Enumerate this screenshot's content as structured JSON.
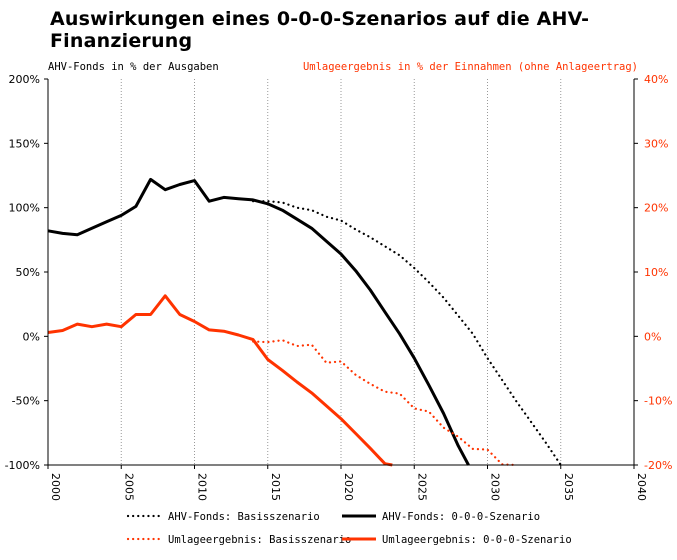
{
  "title": "Auswirkungen eines 0-0-0-Szenarios auf die AHV-Finanzierung",
  "left_axis_title": "AHV-Fonds in % der Ausgaben",
  "right_axis_title": "Umlageergebnis in % der Einnahmen (ohne Anlageertrag)",
  "colors": {
    "black": "#000000",
    "red": "#ff3300",
    "grid": "#999999"
  },
  "chart_data": {
    "type": "line",
    "x_range": [
      2000,
      2040
    ],
    "x_ticks": [
      2000,
      2005,
      2010,
      2015,
      2020,
      2025,
      2030,
      2035,
      2040
    ],
    "x_tick_labels": [
      "2000",
      "2005",
      "2010",
      "2015",
      "2020",
      "2025",
      "2030",
      "2035",
      "2040"
    ],
    "y_left": {
      "range": [
        -100,
        200
      ],
      "ticks": [
        -100,
        -50,
        0,
        50,
        100,
        150,
        200
      ],
      "tick_labels": [
        "-100%",
        "-50%",
        "0%",
        "50%",
        "100%",
        "150%",
        "200%"
      ]
    },
    "y_right": {
      "range": [
        -20,
        40
      ],
      "ticks": [
        -20,
        -10,
        0,
        10,
        20,
        30,
        40
      ],
      "tick_labels": [
        "-20%",
        "-10%",
        "0%",
        "10%",
        "20%",
        "30%",
        "40%"
      ]
    },
    "grid": {
      "vertical": true,
      "vertical_style": "dotted",
      "horizontal": false
    },
    "legend_position": "bottom",
    "series": [
      {
        "name": "AHV-Fonds: Basisszenario",
        "axis": "left",
        "color": "#000000",
        "style": "dotted",
        "x": [
          2014,
          2015,
          2016,
          2017,
          2018,
          2019,
          2020,
          2021,
          2022,
          2023,
          2024,
          2025,
          2026,
          2027,
          2028,
          2029,
          2030,
          2031,
          2032,
          2033,
          2034,
          2035
        ],
        "y": [
          105,
          105,
          104,
          100,
          98,
          93,
          90,
          83,
          77,
          70,
          63,
          53,
          42,
          30,
          16,
          2,
          -17,
          -34,
          -51,
          -67,
          -83,
          -100
        ]
      },
      {
        "name": "AHV-Fonds: 0-0-0-Szenario",
        "axis": "left",
        "color": "#000000",
        "style": "solid",
        "x": [
          2000,
          2001,
          2002,
          2003,
          2004,
          2005,
          2006,
          2007,
          2008,
          2009,
          2010,
          2011,
          2012,
          2013,
          2014,
          2015,
          2016,
          2017,
          2018,
          2019,
          2020,
          2021,
          2022,
          2023,
          2024,
          2025,
          2026,
          2027,
          2028,
          2028.7
        ],
        "y": [
          82,
          80,
          79,
          84,
          89,
          94,
          101,
          122,
          114,
          118,
          121,
          105,
          108,
          107,
          106,
          103,
          98,
          91,
          84,
          74,
          64,
          51,
          36,
          19,
          2,
          -17,
          -38,
          -60,
          -85,
          -100
        ]
      },
      {
        "name": "Umlageergebnis: Basisszenario",
        "axis": "right",
        "color": "#ff3300",
        "style": "dotted",
        "x": [
          2014,
          2015,
          2016,
          2017,
          2018,
          2019,
          2020,
          2021,
          2022,
          2023,
          2024,
          2025,
          2026,
          2027,
          2028,
          2029,
          2030,
          2031,
          2032
        ],
        "y": [
          -0.8,
          -0.9,
          -0.6,
          -1.5,
          -1.3,
          -4.1,
          -3.9,
          -6.0,
          -7.4,
          -8.6,
          -8.9,
          -11.2,
          -11.7,
          -14.2,
          -15.6,
          -17.5,
          -17.6,
          -19.9,
          -20
        ]
      },
      {
        "name": "Umlageergebnis: 0-0-0-Szenario",
        "axis": "right",
        "color": "#ff3300",
        "style": "solid",
        "x": [
          2000,
          2001,
          2002,
          2003,
          2004,
          2005,
          2006,
          2007,
          2008,
          2009,
          2010,
          2011,
          2012,
          2013,
          2014,
          2015,
          2016,
          2017,
          2018,
          2019,
          2020,
          2021,
          2022,
          2023,
          2023.5
        ],
        "y": [
          0.6,
          0.9,
          1.9,
          1.5,
          1.9,
          1.5,
          3.4,
          3.4,
          6.3,
          3.4,
          2.3,
          1.0,
          0.8,
          0.2,
          -0.5,
          -3.6,
          -5.3,
          -7.1,
          -8.8,
          -10.8,
          -12.8,
          -15.1,
          -17.4,
          -19.8,
          -20
        ]
      }
    ]
  }
}
